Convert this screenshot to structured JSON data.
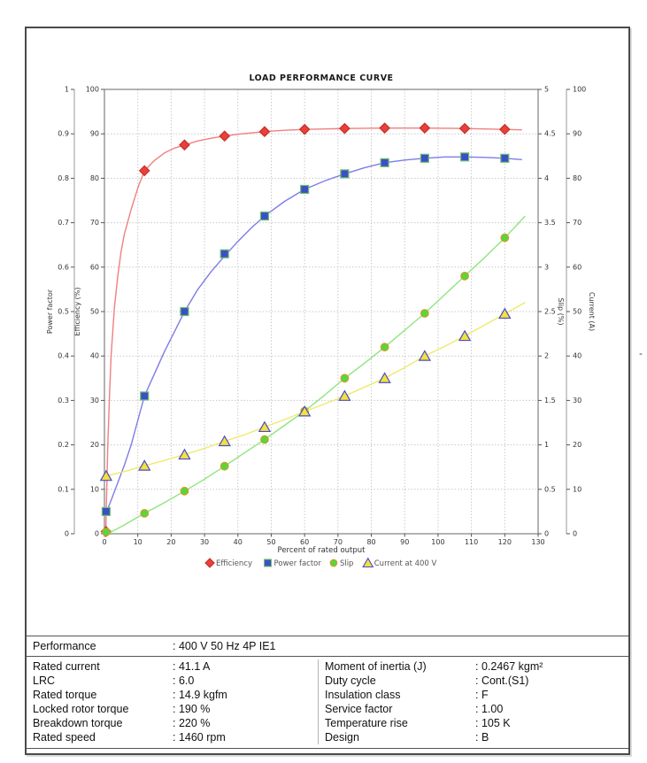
{
  "window": {
    "stray_dash": "-"
  },
  "chart_data": {
    "type": "line",
    "title": "LOAD PERFORMANCE CURVE",
    "xlabel": "Percent of rated output",
    "xlim": [
      0,
      130
    ],
    "x_tick_step": 10,
    "grid": true,
    "legend_position": "bottom-center",
    "axes": {
      "power_factor": {
        "label": "Power factor",
        "range": [
          0,
          1
        ],
        "tick_step": 0.1,
        "side": "left-outer"
      },
      "efficiency": {
        "label": "Efficiency (%)",
        "range": [
          0,
          100
        ],
        "tick_step": 10,
        "side": "left"
      },
      "slip": {
        "label": "Slip (%)",
        "range": [
          0,
          5
        ],
        "tick_step": 0.5,
        "side": "right"
      },
      "current": {
        "label": "Current (A)",
        "range": [
          0,
          100
        ],
        "tick_step": 10,
        "side": "right-outer"
      }
    },
    "marker_x": [
      0.5,
      12,
      24,
      36,
      48,
      60,
      72,
      84,
      96,
      108,
      120
    ],
    "series": [
      {
        "name": "Efficiency",
        "axis": "efficiency",
        "marker": "diamond",
        "colors": {
          "line": "#f17f7f",
          "fill": "#e8403a",
          "stroke": "#c52f28"
        },
        "marker_values": [
          0.5,
          81.7,
          87.5,
          89.5,
          90.5,
          91.0,
          91.2,
          91.3,
          91.3,
          91.2,
          91.0
        ],
        "line_points": [
          [
            0.4,
            0
          ],
          [
            0.7,
            10
          ],
          [
            1,
            20
          ],
          [
            1.5,
            31
          ],
          [
            2,
            40
          ],
          [
            3,
            51
          ],
          [
            4,
            58
          ],
          [
            5,
            63.5
          ],
          [
            6,
            67.5
          ],
          [
            8,
            73
          ],
          [
            10,
            77.8
          ],
          [
            12,
            81.7
          ],
          [
            15,
            84
          ],
          [
            18,
            85.7
          ],
          [
            21,
            86.8
          ],
          [
            24,
            87.5
          ],
          [
            28,
            88.4
          ],
          [
            32,
            89
          ],
          [
            36,
            89.5
          ],
          [
            40,
            89.9
          ],
          [
            44,
            90.2
          ],
          [
            48,
            90.5
          ],
          [
            54,
            90.8
          ],
          [
            60,
            91
          ],
          [
            66,
            91.1
          ],
          [
            72,
            91.2
          ],
          [
            78,
            91.25
          ],
          [
            84,
            91.3
          ],
          [
            90,
            91.3
          ],
          [
            96,
            91.3
          ],
          [
            102,
            91.25
          ],
          [
            108,
            91.2
          ],
          [
            114,
            91.1
          ],
          [
            120,
            91
          ],
          [
            125,
            90.9
          ]
        ]
      },
      {
        "name": "Power factor",
        "axis": "power_factor",
        "marker": "square",
        "colors": {
          "line": "#7d7de6",
          "fill": "#3a50c4",
          "stroke": "#6fbf6f"
        },
        "marker_values": [
          0.05,
          0.31,
          0.5,
          0.63,
          0.715,
          0.775,
          0.81,
          0.835,
          0.845,
          0.848,
          0.845
        ],
        "line_points": [
          [
            0.5,
            0.047
          ],
          [
            2,
            0.075
          ],
          [
            4,
            0.115
          ],
          [
            6,
            0.155
          ],
          [
            8,
            0.2
          ],
          [
            10,
            0.255
          ],
          [
            12,
            0.31
          ],
          [
            15,
            0.36
          ],
          [
            18,
            0.41
          ],
          [
            21,
            0.455
          ],
          [
            24,
            0.5
          ],
          [
            28,
            0.55
          ],
          [
            32,
            0.59
          ],
          [
            36,
            0.625
          ],
          [
            40,
            0.658
          ],
          [
            44,
            0.688
          ],
          [
            48,
            0.715
          ],
          [
            54,
            0.748
          ],
          [
            60,
            0.775
          ],
          [
            66,
            0.794
          ],
          [
            72,
            0.81
          ],
          [
            78,
            0.824
          ],
          [
            84,
            0.835
          ],
          [
            90,
            0.841
          ],
          [
            96,
            0.845
          ],
          [
            102,
            0.848
          ],
          [
            108,
            0.848
          ],
          [
            114,
            0.847
          ],
          [
            120,
            0.845
          ],
          [
            125,
            0.842
          ]
        ]
      },
      {
        "name": "Slip",
        "axis": "slip",
        "marker": "circle",
        "colors": {
          "line": "#8fe57f",
          "fill": "#54d83a",
          "stroke": "#d49c2a"
        },
        "marker_values": [
          0.02,
          0.23,
          0.48,
          0.76,
          1.06,
          1.38,
          1.75,
          2.1,
          2.48,
          2.9,
          3.33
        ],
        "line_points": [
          [
            1,
            0
          ],
          [
            6,
            0.1
          ],
          [
            12,
            0.23
          ],
          [
            18,
            0.35
          ],
          [
            24,
            0.48
          ],
          [
            30,
            0.615
          ],
          [
            36,
            0.76
          ],
          [
            42,
            0.91
          ],
          [
            48,
            1.06
          ],
          [
            54,
            1.22
          ],
          [
            60,
            1.38
          ],
          [
            66,
            1.56
          ],
          [
            72,
            1.75
          ],
          [
            78,
            1.92
          ],
          [
            84,
            2.1
          ],
          [
            90,
            2.29
          ],
          [
            96,
            2.48
          ],
          [
            102,
            2.69
          ],
          [
            108,
            2.9
          ],
          [
            114,
            3.11
          ],
          [
            120,
            3.33
          ],
          [
            126,
            3.57
          ]
        ]
      },
      {
        "name": "Current at 400 V",
        "axis": "current",
        "marker": "triangle",
        "colors": {
          "line": "#efe96e",
          "fill": "#f2e13e",
          "stroke": "#4b4bca"
        },
        "marker_values": [
          13,
          15.3,
          17.8,
          20.8,
          24,
          27.5,
          31,
          35,
          40,
          44.5,
          49.5
        ],
        "line_points": [
          [
            0,
            12.9
          ],
          [
            6,
            14
          ],
          [
            12,
            15.3
          ],
          [
            18,
            16.5
          ],
          [
            24,
            17.8
          ],
          [
            30,
            19.2
          ],
          [
            36,
            20.8
          ],
          [
            42,
            22.3
          ],
          [
            48,
            24
          ],
          [
            54,
            25.7
          ],
          [
            60,
            27.5
          ],
          [
            66,
            29.2
          ],
          [
            72,
            31
          ],
          [
            78,
            33
          ],
          [
            84,
            35
          ],
          [
            90,
            37.4
          ],
          [
            96,
            40
          ],
          [
            102,
            42.2
          ],
          [
            108,
            44.5
          ],
          [
            114,
            47
          ],
          [
            120,
            49.5
          ],
          [
            126,
            52
          ]
        ]
      }
    ]
  },
  "table": {
    "performance": {
      "label": "Performance",
      "value": ": 400 V 50 Hz 4P IE1"
    },
    "left_rows": [
      {
        "label": "Rated current",
        "value": ": 41.1 A"
      },
      {
        "label": "LRC",
        "value": ": 6.0"
      },
      {
        "label": "Rated torque",
        "value": ": 14.9 kgfm"
      },
      {
        "label": "Locked rotor torque",
        "value": ": 190 %"
      },
      {
        "label": "Breakdown torque",
        "value": ": 220 %"
      },
      {
        "label": "Rated speed",
        "value": ": 1460 rpm"
      }
    ],
    "right_rows": [
      {
        "label": "Moment of inertia (J)",
        "value": ": 0.2467 kgm²"
      },
      {
        "label": "Duty cycle",
        "value": ": Cont.(S1)"
      },
      {
        "label": "Insulation class",
        "value": ": F"
      },
      {
        "label": "Service factor",
        "value": ": 1.00"
      },
      {
        "label": "Temperature rise",
        "value": ": 105 K"
      },
      {
        "label": "Design",
        "value": ": B"
      }
    ]
  }
}
